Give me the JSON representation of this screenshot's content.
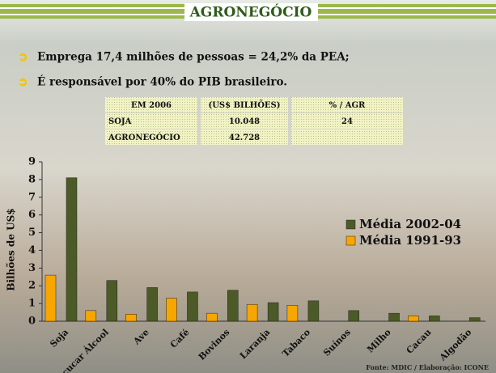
{
  "header": {
    "title": "AGRONEGÓCIO"
  },
  "bullets": [
    "Emprega 17,4 milhões de pessoas = 24,2% da PEA;",
    "É responsável por 40% do PIB brasileiro."
  ],
  "table": {
    "header": [
      "EM 2006",
      "(US$ BILHÕES)",
      "% / AGR"
    ],
    "rows": [
      [
        "SOJA",
        "10.048",
        "24"
      ],
      [
        "AGRONEGÓCIO",
        "42.728"
      ]
    ]
  },
  "chart_data": {
    "type": "bar",
    "ylabel": "Bilhões de US$",
    "categories": [
      "Soja",
      "Açucar Álcool",
      "Ave",
      "Café",
      "Bovinos",
      "Laranja",
      "Tabaco",
      "Suínos",
      "Milho",
      "Cacau",
      "Algodão"
    ],
    "series": [
      {
        "name": "Média 2002-04",
        "color": "#4b5a26",
        "values": [
          8.1,
          2.3,
          1.9,
          1.65,
          1.75,
          1.05,
          1.15,
          0.6,
          0.45,
          0.3,
          0.2
        ]
      },
      {
        "name": "Média 1991-93",
        "color": "#f7a600",
        "values": [
          2.6,
          0.6,
          0.4,
          1.3,
          0.45,
          0.95,
          0.9,
          0,
          0,
          0.3,
          0
        ]
      }
    ],
    "ylim": [
      0,
      9
    ],
    "yticks": [
      0,
      1,
      2,
      3,
      4,
      5,
      6,
      7,
      8,
      9
    ],
    "grid": false,
    "legend": "right"
  },
  "footer": "Fonte: MDIC / Elaboração: ICONE"
}
